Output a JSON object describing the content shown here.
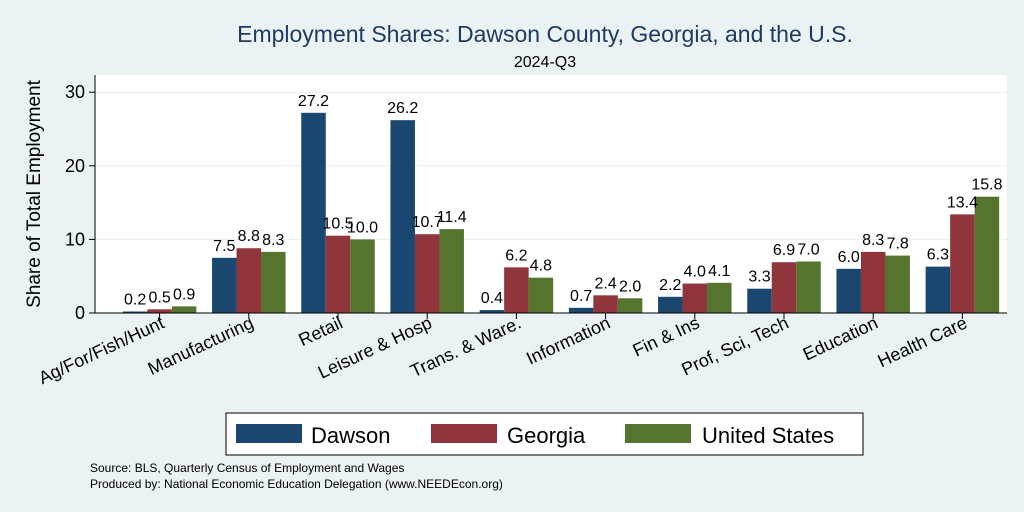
{
  "chart_data": {
    "type": "bar",
    "title": "Employment Shares: Dawson County, Georgia, and the U.S.",
    "subtitle": "2024-Q3",
    "xlabel": "",
    "ylabel": "Share of Total Employment",
    "ylim": [
      0,
      32
    ],
    "yticks": [
      0,
      10,
      20,
      30
    ],
    "grid": true,
    "legend_position": "bottom",
    "categories": [
      "Ag/For/Fish/Hunt",
      "Manufacturing",
      "Retail",
      "Leisure & Hosp",
      "Trans. & Ware.",
      "Information",
      "Fin & Ins",
      "Prof, Sci, Tech",
      "Education",
      "Health Care"
    ],
    "series": [
      {
        "name": "Dawson",
        "color": "#1a476f",
        "values": [
          0.2,
          7.5,
          27.2,
          26.2,
          0.4,
          0.7,
          2.2,
          3.3,
          6.0,
          6.3
        ]
      },
      {
        "name": "Georgia",
        "color": "#90353b",
        "values": [
          0.5,
          8.8,
          10.5,
          10.7,
          6.2,
          2.4,
          4.0,
          6.9,
          8.3,
          13.4
        ]
      },
      {
        "name": "United States",
        "color": "#55752f",
        "values": [
          0.9,
          8.3,
          10.0,
          11.4,
          4.8,
          2.0,
          4.1,
          7.0,
          7.8,
          15.8
        ]
      }
    ]
  },
  "notes": {
    "source": "Source: BLS, Quarterly Census of Employment and Wages",
    "produced": "Produced by: National Economic Education Delegation (www.NEEDEcon.org)"
  }
}
